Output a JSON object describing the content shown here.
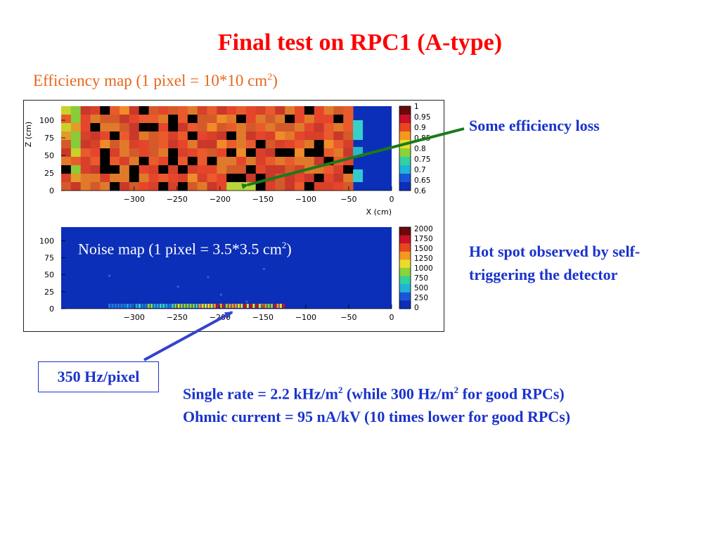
{
  "title": "Final test on RPC1 (A-type)",
  "subtitle": {
    "prefix": "Efficiency map (1 pixel = 10*10 cm",
    "sup": "2",
    "suffix": ")"
  },
  "annotations": {
    "efficiency_loss": "Some efficiency loss",
    "hot_spot_line1": "Hot spot observed by self-",
    "hot_spot_line2": "triggering the detector",
    "rate_box": "350 Hz/pixel",
    "single_rate": {
      "a": "Single rate = 2.2 kHz/m",
      "sup1": "2",
      "b": " (while 300 Hz/m",
      "sup2": "2",
      "c": " for good RPCs)"
    },
    "ohmic": "Ohmic current = 95 nA/kV (10 times lower for good RPCs)"
  },
  "colors": {
    "title": "#ff0000",
    "subtitle": "#e8661b",
    "annotation": "#1a33cc",
    "arrow_efficiency": "#1a7a1a",
    "arrow_rate": "#3344cc",
    "plot_background": "#0b2fb8"
  },
  "chart_data": [
    {
      "type": "heatmap",
      "xlabel": "X (cm)",
      "ylabel": "Z (cm)",
      "x_ticks": [
        "−300",
        "−250",
        "−200",
        "−150",
        "−100",
        "−50",
        "0"
      ],
      "y_ticks": [
        "0",
        "25",
        "50",
        "75",
        "100"
      ],
      "xlim": [
        -385,
        0
      ],
      "ylim": [
        0,
        120
      ],
      "colorbar_ticks": [
        "1",
        "0.95",
        "0.9",
        "0.85",
        "0.8",
        "0.75",
        "0.7",
        "0.65",
        "0.6"
      ],
      "colorbar_range": [
        0.6,
        1.0
      ],
      "description_values": "cell efficiencies mostly 0.9-1.0, dead cells at 0, right-hand column near 0.75",
      "noise_label": {
        "prefix": "Noise map (1 pixel = 3.5*3.5 cm",
        "sup": "2",
        "suffix": ")"
      }
    },
    {
      "type": "heatmap",
      "x_ticks": [
        "−300",
        "−250",
        "−200",
        "−150",
        "−100",
        "−50",
        "0"
      ],
      "y_ticks": [
        "0",
        "25",
        "50",
        "75",
        "100"
      ],
      "xlim": [
        -385,
        0
      ],
      "ylim": [
        0,
        120
      ],
      "colorbar_ticks": [
        "2000",
        "1750",
        "1500",
        "1250",
        "1000",
        "750",
        "500",
        "250",
        "0"
      ],
      "colorbar_range": [
        0,
        2000
      ],
      "hot_spot_x": -165,
      "hot_spot_z": 0
    }
  ]
}
